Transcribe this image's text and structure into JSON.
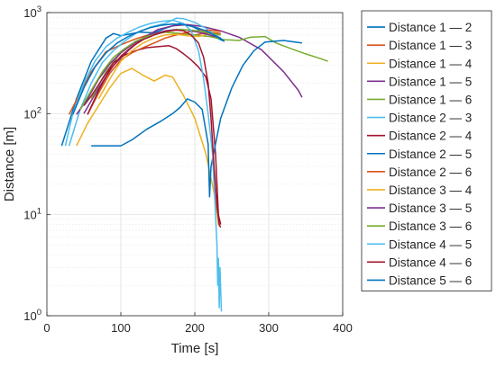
{
  "chart_data": {
    "type": "line",
    "title": "",
    "xlabel": "Time [s]",
    "ylabel": "Distance [m]",
    "xlim": [
      0,
      400
    ],
    "ylim": [
      1,
      1000
    ],
    "y_scale": "log",
    "grid": true,
    "minor_grid": true,
    "legend_position": "outside-right",
    "x_ticks": [
      0,
      100,
      200,
      300,
      400
    ],
    "x_tick_labels": [
      "0",
      "100",
      "200",
      "300",
      "400"
    ],
    "y_ticks": [
      1,
      10,
      100,
      1000
    ],
    "y_tick_labels": [
      "10^0",
      "10^1",
      "10^2",
      "10^3"
    ],
    "series": [
      {
        "name": "Distance 1 — 2",
        "color": "#0072BD",
        "points": [
          [
            20,
            48
          ],
          [
            40,
            140
          ],
          [
            60,
            330
          ],
          [
            80,
            560
          ],
          [
            90,
            620
          ],
          [
            100,
            590
          ],
          [
            110,
            610
          ],
          [
            125,
            640
          ],
          [
            145,
            630
          ],
          [
            160,
            700
          ],
          [
            180,
            780
          ],
          [
            195,
            740
          ],
          [
            210,
            650
          ],
          [
            225,
            580
          ],
          [
            240,
            520
          ]
        ]
      },
      {
        "name": "Distance 1 — 3",
        "color": "#D95319",
        "points": [
          [
            30,
            98
          ],
          [
            45,
            160
          ],
          [
            60,
            260
          ],
          [
            80,
            410
          ],
          [
            100,
            480
          ],
          [
            120,
            550
          ],
          [
            140,
            610
          ],
          [
            160,
            640
          ],
          [
            180,
            620
          ],
          [
            200,
            600
          ],
          [
            220,
            640
          ],
          [
            235,
            620
          ]
        ]
      },
      {
        "name": "Distance 1 — 4",
        "color": "#EDB120",
        "points": [
          [
            40,
            48
          ],
          [
            55,
            80
          ],
          [
            70,
            120
          ],
          [
            85,
            180
          ],
          [
            100,
            250
          ],
          [
            115,
            280
          ],
          [
            130,
            240
          ],
          [
            145,
            210
          ],
          [
            160,
            240
          ],
          [
            170,
            230
          ],
          [
            185,
            150
          ],
          [
            200,
            90
          ],
          [
            215,
            40
          ],
          [
            228,
            14
          ],
          [
            232,
            8
          ],
          [
            235,
            7.5
          ]
        ]
      },
      {
        "name": "Distance 1 — 5",
        "color": "#7E2F8E",
        "points": [
          [
            50,
            100
          ],
          [
            70,
            180
          ],
          [
            90,
            300
          ],
          [
            110,
            420
          ],
          [
            130,
            560
          ],
          [
            150,
            680
          ],
          [
            170,
            740
          ],
          [
            190,
            760
          ],
          [
            210,
            730
          ],
          [
            235,
            660
          ],
          [
            260,
            570
          ],
          [
            290,
            430
          ],
          [
            320,
            260
          ],
          [
            340,
            170
          ],
          [
            345,
            145
          ]
        ]
      },
      {
        "name": "Distance 1 — 6",
        "color": "#77AC30",
        "points": [
          [
            60,
            140
          ],
          [
            80,
            260
          ],
          [
            100,
            400
          ],
          [
            120,
            520
          ],
          [
            140,
            600
          ],
          [
            160,
            640
          ],
          [
            180,
            620
          ],
          [
            200,
            600
          ],
          [
            220,
            580
          ],
          [
            240,
            540
          ],
          [
            260,
            530
          ],
          [
            275,
            570
          ],
          [
            295,
            580
          ],
          [
            310,
            500
          ],
          [
            330,
            440
          ],
          [
            350,
            390
          ],
          [
            370,
            350
          ],
          [
            380,
            330
          ]
        ]
      },
      {
        "name": "Distance 2 — 3",
        "color": "#4DBEEE",
        "points": [
          [
            30,
            48
          ],
          [
            45,
            110
          ],
          [
            60,
            200
          ],
          [
            75,
            320
          ],
          [
            90,
            420
          ],
          [
            105,
            520
          ],
          [
            120,
            620
          ],
          [
            140,
            720
          ],
          [
            160,
            780
          ],
          [
            175,
            880
          ],
          [
            185,
            870
          ],
          [
            200,
            800
          ],
          [
            215,
            700
          ],
          [
            225,
            620
          ],
          [
            235,
            560
          ],
          [
            240,
            520
          ]
        ]
      },
      {
        "name": "Distance 2 — 4",
        "color": "#A2142F",
        "points": [
          [
            50,
            120
          ],
          [
            60,
            150
          ],
          [
            75,
            220
          ],
          [
            90,
            320
          ],
          [
            105,
            380
          ],
          [
            120,
            420
          ],
          [
            135,
            450
          ],
          [
            150,
            460
          ],
          [
            165,
            470
          ],
          [
            175,
            440
          ],
          [
            185,
            390
          ],
          [
            195,
            340
          ],
          [
            205,
            290
          ],
          [
            215,
            230
          ],
          [
            222,
            140
          ],
          [
            228,
            40
          ],
          [
            232,
            10
          ],
          [
            235,
            8
          ]
        ]
      },
      {
        "name": "Distance 2 — 5",
        "color": "#0072BD",
        "points": [
          [
            60,
            48
          ],
          [
            70,
            48
          ],
          [
            85,
            48
          ],
          [
            100,
            48
          ],
          [
            115,
            55
          ],
          [
            135,
            70
          ],
          [
            155,
            85
          ],
          [
            170,
            100
          ],
          [
            180,
            115
          ],
          [
            190,
            140
          ],
          [
            200,
            130
          ],
          [
            210,
            110
          ],
          [
            218,
            50
          ],
          [
            220,
            15
          ],
          [
            222,
            30
          ],
          [
            235,
            90
          ],
          [
            250,
            180
          ],
          [
            265,
            300
          ],
          [
            280,
            420
          ],
          [
            295,
            510
          ],
          [
            320,
            530
          ],
          [
            345,
            500
          ]
        ]
      },
      {
        "name": "Distance 2 — 6",
        "color": "#D95319",
        "points": [
          [
            55,
            98
          ],
          [
            70,
            160
          ],
          [
            85,
            250
          ],
          [
            100,
            340
          ],
          [
            115,
            400
          ],
          [
            130,
            450
          ],
          [
            145,
            500
          ],
          [
            160,
            560
          ],
          [
            175,
            600
          ],
          [
            190,
            640
          ],
          [
            205,
            660
          ],
          [
            220,
            670
          ],
          [
            235,
            650
          ]
        ]
      },
      {
        "name": "Distance 3 — 4",
        "color": "#EDB120",
        "points": [
          [
            70,
            140
          ],
          [
            85,
            220
          ],
          [
            100,
            330
          ],
          [
            115,
            420
          ],
          [
            130,
            500
          ],
          [
            145,
            560
          ],
          [
            160,
            600
          ],
          [
            175,
            610
          ],
          [
            190,
            590
          ],
          [
            205,
            580
          ],
          [
            220,
            620
          ],
          [
            235,
            600
          ]
        ]
      },
      {
        "name": "Distance 3 — 5",
        "color": "#7E2F8E",
        "points": [
          [
            40,
            98
          ],
          [
            55,
            140
          ],
          [
            70,
            220
          ],
          [
            85,
            310
          ],
          [
            100,
            400
          ],
          [
            115,
            480
          ],
          [
            130,
            560
          ],
          [
            145,
            620
          ],
          [
            160,
            660
          ],
          [
            175,
            680
          ],
          [
            190,
            670
          ],
          [
            205,
            640
          ],
          [
            220,
            600
          ],
          [
            235,
            560
          ]
        ]
      },
      {
        "name": "Distance 3 — 6",
        "color": "#77AC30",
        "points": [
          [
            45,
            110
          ],
          [
            60,
            170
          ],
          [
            75,
            260
          ],
          [
            90,
            360
          ],
          [
            105,
            440
          ],
          [
            120,
            520
          ],
          [
            135,
            580
          ],
          [
            150,
            620
          ],
          [
            165,
            660
          ],
          [
            180,
            680
          ],
          [
            195,
            670
          ],
          [
            210,
            650
          ],
          [
            225,
            620
          ],
          [
            235,
            600
          ]
        ]
      },
      {
        "name": "Distance 4 — 5",
        "color": "#4DBEEE",
        "points": [
          [
            25,
            48
          ],
          [
            35,
            100
          ],
          [
            50,
            200
          ],
          [
            65,
            330
          ],
          [
            80,
            460
          ],
          [
            95,
            560
          ],
          [
            110,
            640
          ],
          [
            125,
            720
          ],
          [
            140,
            780
          ],
          [
            155,
            820
          ],
          [
            170,
            840
          ],
          [
            185,
            780
          ],
          [
            195,
            660
          ],
          [
            205,
            420
          ],
          [
            212,
            220
          ],
          [
            218,
            100
          ],
          [
            224,
            40
          ],
          [
            228,
            10
          ],
          [
            230,
            5
          ],
          [
            231,
            2
          ],
          [
            232,
            3.7
          ],
          [
            233,
            1.2
          ],
          [
            234,
            3
          ],
          [
            236,
            1.1
          ]
        ]
      },
      {
        "name": "Distance 4 — 6",
        "color": "#A2142F",
        "points": [
          [
            55,
            98
          ],
          [
            70,
            170
          ],
          [
            85,
            270
          ],
          [
            100,
            370
          ],
          [
            115,
            460
          ],
          [
            130,
            540
          ],
          [
            145,
            600
          ],
          [
            160,
            650
          ],
          [
            175,
            670
          ],
          [
            185,
            660
          ],
          [
            195,
            600
          ],
          [
            205,
            500
          ],
          [
            212,
            360
          ],
          [
            218,
            200
          ],
          [
            222,
            90
          ],
          [
            226,
            30
          ],
          [
            230,
            12
          ],
          [
            233,
            8
          ],
          [
            235,
            7.5
          ]
        ]
      },
      {
        "name": "Distance 5 — 6",
        "color": "#0072BD",
        "points": [
          [
            35,
            98
          ],
          [
            50,
            180
          ],
          [
            65,
            290
          ],
          [
            80,
            400
          ],
          [
            95,
            500
          ],
          [
            110,
            580
          ],
          [
            125,
            650
          ],
          [
            140,
            710
          ],
          [
            155,
            750
          ],
          [
            170,
            770
          ],
          [
            185,
            760
          ],
          [
            200,
            720
          ],
          [
            215,
            660
          ],
          [
            230,
            580
          ],
          [
            240,
            520
          ]
        ]
      }
    ]
  }
}
